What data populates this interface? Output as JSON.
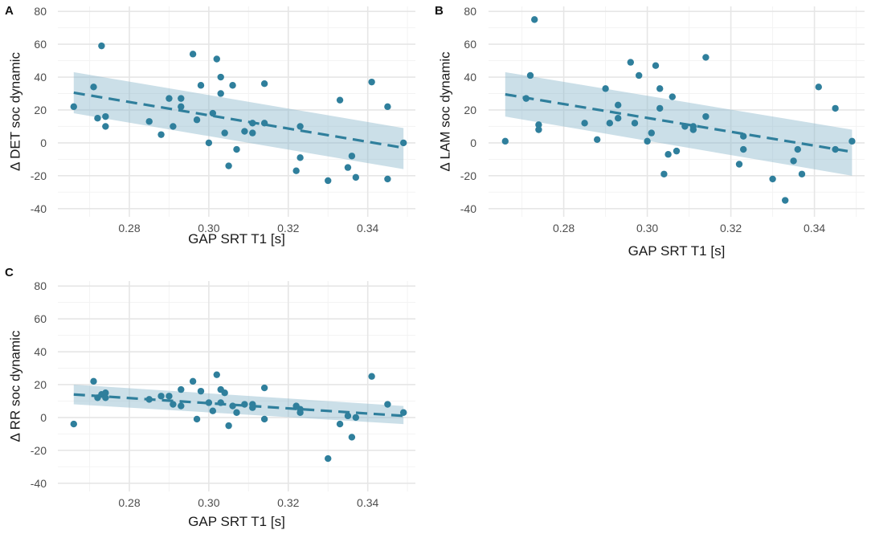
{
  "figure": {
    "colors": {
      "point": "#2f7f9c",
      "line": "#2f7f9c",
      "band": "#8bb9cc",
      "grid_major": "#e6e6e6",
      "grid_minor": "#f3f3f3",
      "text": "#1a1a1a",
      "tick": "#4d4d4d"
    }
  },
  "chart_data": [
    {
      "panel": "A",
      "type": "scatter",
      "xlabel": "GAP SRT T1 [s]",
      "ylabel": "Δ DET soc dynamic",
      "xlim": [
        0.262,
        0.352
      ],
      "ylim": [
        -45,
        83
      ],
      "xticks": [
        0.28,
        0.3,
        0.32,
        0.34
      ],
      "xtick_labels": [
        "0.28",
        "0.30",
        "0.32",
        "0.34"
      ],
      "yticks": [
        -40,
        -20,
        0,
        20,
        40,
        60,
        80
      ],
      "ytick_labels": [
        "-40",
        "-20",
        "0",
        "20",
        "40",
        "60",
        "80"
      ],
      "fit": {
        "x": [
          0.266,
          0.349
        ],
        "y": [
          30.5,
          -3
        ],
        "band_upper": [
          43,
          9
        ],
        "band_lower": [
          18,
          -16
        ]
      },
      "points": [
        [
          0.266,
          22
        ],
        [
          0.271,
          34
        ],
        [
          0.272,
          15
        ],
        [
          0.273,
          59
        ],
        [
          0.274,
          16
        ],
        [
          0.274,
          10
        ],
        [
          0.285,
          13
        ],
        [
          0.288,
          5
        ],
        [
          0.29,
          27
        ],
        [
          0.291,
          10
        ],
        [
          0.293,
          27
        ],
        [
          0.293,
          22
        ],
        [
          0.296,
          54
        ],
        [
          0.297,
          14
        ],
        [
          0.298,
          35
        ],
        [
          0.3,
          0
        ],
        [
          0.301,
          18
        ],
        [
          0.302,
          51
        ],
        [
          0.303,
          40
        ],
        [
          0.303,
          30
        ],
        [
          0.304,
          6
        ],
        [
          0.305,
          -14
        ],
        [
          0.306,
          35
        ],
        [
          0.307,
          -4
        ],
        [
          0.309,
          7
        ],
        [
          0.311,
          12
        ],
        [
          0.311,
          6
        ],
        [
          0.314,
          36
        ],
        [
          0.314,
          12
        ],
        [
          0.322,
          -17
        ],
        [
          0.323,
          10
        ],
        [
          0.323,
          -9
        ],
        [
          0.33,
          -23
        ],
        [
          0.333,
          26
        ],
        [
          0.335,
          -15
        ],
        [
          0.336,
          -8
        ],
        [
          0.337,
          -21
        ],
        [
          0.341,
          37
        ],
        [
          0.345,
          22
        ],
        [
          0.345,
          -22
        ],
        [
          0.349,
          0
        ]
      ]
    },
    {
      "panel": "B",
      "type": "scatter",
      "xlabel": "GAP SRT T1 [s]",
      "ylabel": "Δ LAM soc dynamic",
      "xlim": [
        0.262,
        0.352
      ],
      "ylim": [
        -45,
        83
      ],
      "xticks": [
        0.28,
        0.3,
        0.32,
        0.34
      ],
      "xtick_labels": [
        "0.28",
        "0.30",
        "0.32",
        "0.34"
      ],
      "yticks": [
        -40,
        -20,
        0,
        20,
        40,
        60,
        80
      ],
      "ytick_labels": [
        "-40",
        "-20",
        "0",
        "20",
        "40",
        "60",
        "80"
      ],
      "fit": {
        "x": [
          0.266,
          0.349
        ],
        "y": [
          29.5,
          -5.5
        ],
        "band_upper": [
          43,
          8
        ],
        "band_lower": [
          16,
          -20
        ]
      },
      "points": [
        [
          0.266,
          1
        ],
        [
          0.271,
          27
        ],
        [
          0.272,
          41
        ],
        [
          0.273,
          75
        ],
        [
          0.274,
          11
        ],
        [
          0.274,
          8
        ],
        [
          0.285,
          12
        ],
        [
          0.288,
          2
        ],
        [
          0.29,
          33
        ],
        [
          0.291,
          12
        ],
        [
          0.293,
          23
        ],
        [
          0.293,
          15
        ],
        [
          0.296,
          49
        ],
        [
          0.297,
          12
        ],
        [
          0.298,
          41
        ],
        [
          0.3,
          1
        ],
        [
          0.301,
          6
        ],
        [
          0.302,
          47
        ],
        [
          0.303,
          33
        ],
        [
          0.303,
          21
        ],
        [
          0.304,
          -19
        ],
        [
          0.305,
          -7
        ],
        [
          0.306,
          28
        ],
        [
          0.307,
          -5
        ],
        [
          0.309,
          10
        ],
        [
          0.311,
          10
        ],
        [
          0.311,
          8
        ],
        [
          0.314,
          52
        ],
        [
          0.314,
          16
        ],
        [
          0.322,
          -13
        ],
        [
          0.323,
          -4
        ],
        [
          0.323,
          4
        ],
        [
          0.33,
          -22
        ],
        [
          0.333,
          -35
        ],
        [
          0.335,
          -11
        ],
        [
          0.336,
          -4
        ],
        [
          0.337,
          -19
        ],
        [
          0.341,
          34
        ],
        [
          0.345,
          21
        ],
        [
          0.345,
          -4
        ],
        [
          0.349,
          1
        ]
      ]
    },
    {
      "panel": "C",
      "type": "scatter",
      "xlabel": "GAP SRT T1 [s]",
      "ylabel": "Δ RR soc dynamic",
      "xlim": [
        0.262,
        0.352
      ],
      "ylim": [
        -45,
        83
      ],
      "xticks": [
        0.28,
        0.3,
        0.32,
        0.34
      ],
      "xtick_labels": [
        "0.28",
        "0.30",
        "0.32",
        "0.34"
      ],
      "yticks": [
        -40,
        -20,
        0,
        20,
        40,
        60,
        80
      ],
      "ytick_labels": [
        "-40",
        "-20",
        "0",
        "20",
        "40",
        "60",
        "80"
      ],
      "fit": {
        "x": [
          0.266,
          0.349
        ],
        "y": [
          14,
          1
        ],
        "band_upper": [
          20,
          7
        ],
        "band_lower": [
          8,
          -4
        ]
      },
      "points": [
        [
          0.266,
          -4
        ],
        [
          0.271,
          22
        ],
        [
          0.272,
          12
        ],
        [
          0.273,
          14
        ],
        [
          0.274,
          15
        ],
        [
          0.274,
          12
        ],
        [
          0.285,
          11
        ],
        [
          0.288,
          13
        ],
        [
          0.29,
          13
        ],
        [
          0.291,
          8
        ],
        [
          0.293,
          7
        ],
        [
          0.293,
          17
        ],
        [
          0.296,
          22
        ],
        [
          0.297,
          -1
        ],
        [
          0.298,
          16
        ],
        [
          0.3,
          9
        ],
        [
          0.301,
          4
        ],
        [
          0.302,
          26
        ],
        [
          0.303,
          17
        ],
        [
          0.303,
          9
        ],
        [
          0.304,
          15
        ],
        [
          0.305,
          -5
        ],
        [
          0.306,
          7
        ],
        [
          0.307,
          3
        ],
        [
          0.309,
          8
        ],
        [
          0.311,
          8
        ],
        [
          0.311,
          6
        ],
        [
          0.314,
          18
        ],
        [
          0.314,
          -1
        ],
        [
          0.322,
          7
        ],
        [
          0.323,
          5
        ],
        [
          0.323,
          3
        ],
        [
          0.33,
          -25
        ],
        [
          0.333,
          -4
        ],
        [
          0.335,
          1
        ],
        [
          0.336,
          -12
        ],
        [
          0.337,
          0
        ],
        [
          0.341,
          25
        ],
        [
          0.345,
          8
        ],
        [
          0.349,
          3
        ]
      ]
    }
  ]
}
